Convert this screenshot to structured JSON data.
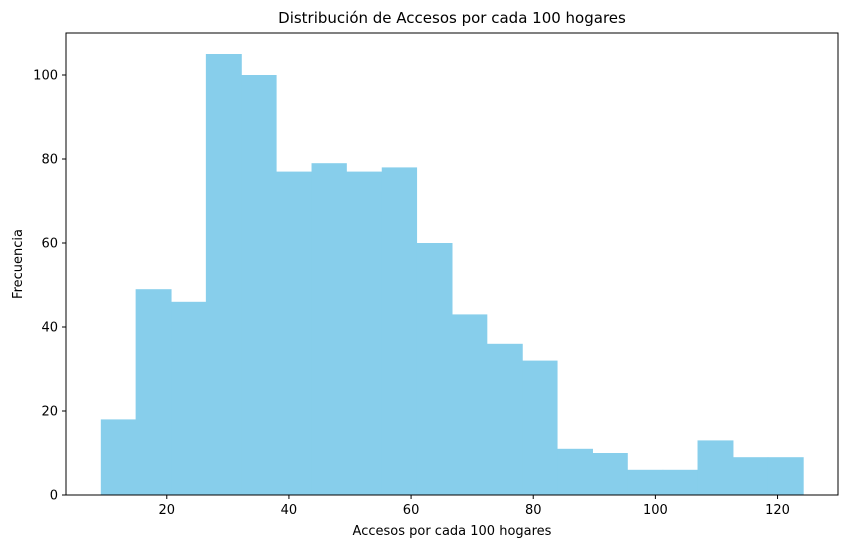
{
  "chart_data": {
    "type": "histogram",
    "title": "Distribución de Accesos por cada 100 hogares",
    "xlabel": "Accesos por cada 100 hogares",
    "ylabel": "Frecuencia",
    "bar_color": "#87ceeb",
    "bin_edges": [
      9.2,
      14.9,
      20.7,
      26.4,
      32.2,
      37.9,
      43.7,
      49.4,
      55.2,
      60.9,
      66.7,
      72.4,
      78.2,
      83.9,
      89.7,
      95.4,
      101.2,
      106.9,
      112.7,
      118.4,
      124.2
    ],
    "values": [
      18,
      49,
      46,
      105,
      100,
      77,
      79,
      77,
      78,
      60,
      43,
      36,
      32,
      11,
      10,
      6,
      6,
      13,
      9,
      9
    ],
    "xlim": [
      3.5,
      129.9
    ],
    "ylim": [
      0,
      110
    ],
    "xticks": [
      20,
      40,
      60,
      80,
      100,
      120
    ],
    "yticks": [
      0,
      20,
      40,
      60,
      80,
      100
    ],
    "grid": false,
    "legend": "none"
  }
}
